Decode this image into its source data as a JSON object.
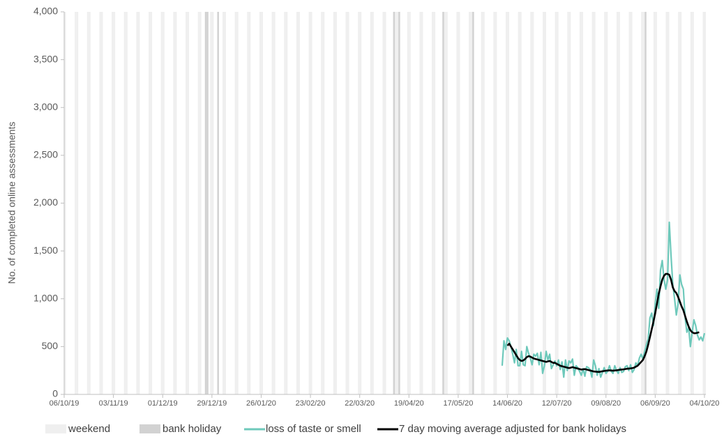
{
  "chart_data": {
    "type": "line",
    "y_label": "No. of completed online assessments",
    "xlim": [
      "06/10/19",
      "04/10/20"
    ],
    "xticks": [
      "06/10/19",
      "03/11/19",
      "01/12/19",
      "29/12/19",
      "26/01/20",
      "23/02/20",
      "22/03/20",
      "19/04/20",
      "17/05/20",
      "14/06/20",
      "12/07/20",
      "09/08/20",
      "06/09/20",
      "04/10/20"
    ],
    "ylim": [
      0,
      4000
    ],
    "yticks": [
      0,
      500,
      {
        "value": 1000,
        "label": "1,000"
      },
      {
        "value": 1500,
        "label": "1,500"
      },
      {
        "value": 2000,
        "label": "2,000"
      },
      {
        "value": 2500,
        "label": "2,500"
      },
      {
        "value": 3000,
        "label": "3,000"
      },
      {
        "value": 3500,
        "label": "3,500"
      },
      {
        "value": 4000,
        "label": "4,000"
      }
    ],
    "weekend": {
      "name": "weekend",
      "color": "#efefef"
    },
    "bank_holiday": {
      "name": "bank holiday",
      "color": "#d2d2d2",
      "dates": [
        "25/12/19",
        "26/12/19",
        "01/01/20",
        "10/04/20",
        "13/04/20",
        "08/05/20",
        "25/05/20",
        "31/08/20"
      ]
    },
    "x": [
      "11/06/20",
      "12/06/20",
      "13/06/20",
      "14/06/20",
      "15/06/20",
      "16/06/20",
      "17/06/20",
      "18/06/20",
      "19/06/20",
      "20/06/20",
      "21/06/20",
      "22/06/20",
      "23/06/20",
      "24/06/20",
      "25/06/20",
      "26/06/20",
      "27/06/20",
      "28/06/20",
      "29/06/20",
      "30/06/20",
      "01/07/20",
      "02/07/20",
      "03/07/20",
      "04/07/20",
      "05/07/20",
      "06/07/20",
      "07/07/20",
      "08/07/20",
      "09/07/20",
      "10/07/20",
      "11/07/20",
      "12/07/20",
      "13/07/20",
      "14/07/20",
      "15/07/20",
      "16/07/20",
      "17/07/20",
      "18/07/20",
      "19/07/20",
      "20/07/20",
      "21/07/20",
      "22/07/20",
      "23/07/20",
      "24/07/20",
      "25/07/20",
      "26/07/20",
      "27/07/20",
      "28/07/20",
      "29/07/20",
      "30/07/20",
      "31/07/20",
      "01/08/20",
      "02/08/20",
      "03/08/20",
      "04/08/20",
      "05/08/20",
      "06/08/20",
      "07/08/20",
      "08/08/20",
      "09/08/20",
      "10/08/20",
      "11/08/20",
      "12/08/20",
      "13/08/20",
      "14/08/20",
      "15/08/20",
      "16/08/20",
      "17/08/20",
      "18/08/20",
      "19/08/20",
      "20/08/20",
      "21/08/20",
      "22/08/20",
      "23/08/20",
      "24/08/20",
      "25/08/20",
      "26/08/20",
      "27/08/20",
      "28/08/20",
      "29/08/20",
      "30/08/20",
      "31/08/20",
      "01/09/20",
      "02/09/20",
      "03/09/20",
      "04/09/20",
      "05/09/20",
      "06/09/20",
      "07/09/20",
      "08/09/20",
      "09/09/20",
      "10/09/20",
      "11/09/20",
      "12/09/20",
      "13/09/20",
      "14/09/20",
      "15/09/20",
      "16/09/20",
      "17/09/20",
      "18/09/20",
      "19/09/20",
      "20/09/20",
      "21/09/20",
      "22/09/20",
      "23/09/20",
      "24/09/20",
      "25/09/20",
      "26/09/20",
      "27/09/20",
      "28/09/20",
      "29/09/20",
      "30/09/20",
      "01/10/20",
      "02/10/20",
      "03/10/20",
      "04/10/20"
    ],
    "series": [
      {
        "name": "loss of taste or smell",
        "color": "#6ec9bb",
        "values": [
          300,
          560,
          470,
          590,
          560,
          500,
          420,
          330,
          470,
          300,
          300,
          450,
          310,
          300,
          500,
          430,
          380,
          310,
          420,
          400,
          430,
          310,
          440,
          220,
          300,
          450,
          360,
          420,
          270,
          310,
          350,
          300,
          360,
          260,
          340,
          180,
          360,
          250,
          350,
          330,
          370,
          200,
          300,
          280,
          240,
          200,
          270,
          190,
          290,
          280,
          260,
          180,
          360,
          300,
          200,
          270,
          180,
          230,
          280,
          220,
          240,
          300,
          240,
          220,
          300,
          250,
          220,
          280,
          230,
          240,
          290,
          300,
          250,
          310,
          230,
          260,
          330,
          300,
          380,
          420,
          370,
          450,
          520,
          580,
          800,
          850,
          720,
          950,
          1100,
          900,
          1300,
          1400,
          1200,
          1100,
          1200,
          1800,
          1450,
          1150,
          1000,
          830,
          950,
          1250,
          1150,
          1100,
          800,
          650,
          700,
          500,
          650,
          780,
          720,
          620,
          570,
          600,
          560,
          640
        ]
      },
      {
        "name": "7 day moving average adjusted for bank holidays",
        "color": "#000000",
        "values": [
          null,
          null,
          null,
          510,
          530,
          500,
          470,
          440,
          410,
          380,
          360,
          350,
          355,
          370,
          390,
          400,
          395,
          385,
          375,
          370,
          365,
          360,
          355,
          350,
          345,
          340,
          345,
          350,
          340,
          330,
          330,
          320,
          310,
          300,
          295,
          290,
          285,
          280,
          275,
          280,
          285,
          280,
          275,
          270,
          265,
          260,
          262,
          265,
          260,
          255,
          250,
          245,
          240,
          238,
          236,
          235,
          238,
          242,
          245,
          248,
          250,
          252,
          250,
          248,
          250,
          252,
          255,
          258,
          260,
          262,
          265,
          268,
          270,
          272,
          275,
          280,
          290,
          300,
          320,
          340,
          360,
          400,
          450,
          520,
          600,
          680,
          760,
          850,
          950,
          1050,
          1130,
          1200,
          1240,
          1260,
          1260,
          1250,
          1200,
          1120,
          1080,
          1060,
          1020,
          970,
          920,
          880,
          820,
          760,
          710,
          670,
          650,
          640,
          640,
          645,
          650,
          null,
          null,
          null
        ]
      }
    ]
  }
}
